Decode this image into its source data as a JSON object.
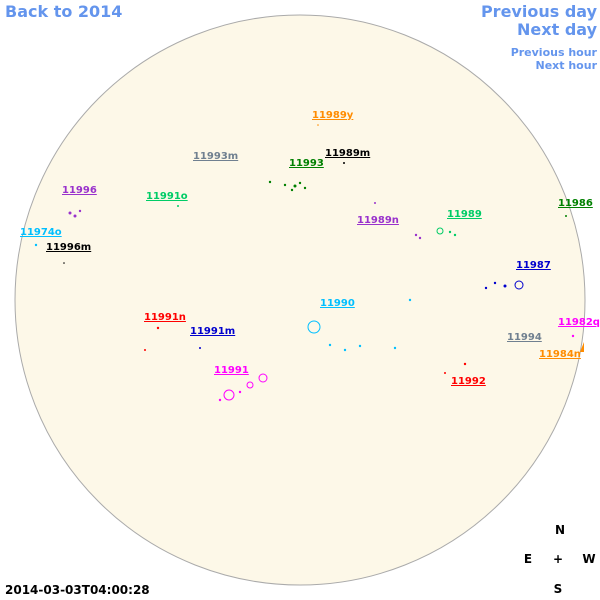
{
  "nav": {
    "back_year": "Back to 2014",
    "previous_day": "Previous day",
    "next_day": "Next day",
    "previous_hour": "Previous hour",
    "next_hour": "Next hour"
  },
  "regions": [
    {
      "label": "11989y",
      "color": "#ff8c00"
    },
    {
      "label": "11989m",
      "color": "#000000"
    },
    {
      "label": "11993m",
      "color": "#708090"
    },
    {
      "label": "11993",
      "color": "#008000"
    },
    {
      "label": "11996",
      "color": "#9932cc"
    },
    {
      "label": "11991o",
      "color": "#00cc66"
    },
    {
      "label": "11986",
      "color": "#008000"
    },
    {
      "label": "11989",
      "color": "#00cc66"
    },
    {
      "label": "11989n",
      "color": "#9932cc"
    },
    {
      "label": "11974o",
      "color": "#00bfff"
    },
    {
      "label": "11996m",
      "color": "#000000"
    },
    {
      "label": "11987",
      "color": "#0000cd"
    },
    {
      "label": "11990",
      "color": "#00bfff"
    },
    {
      "label": "11991n",
      "color": "#ff0000"
    },
    {
      "label": "11991m",
      "color": "#0000cd"
    },
    {
      "label": "11982q",
      "color": "#ff00ff"
    },
    {
      "label": "11994",
      "color": "#708090"
    },
    {
      "label": "11984n",
      "color": "#ff8c00"
    },
    {
      "label": "11991",
      "color": "#ff00ff"
    },
    {
      "label": "11992",
      "color": "#ff0000"
    }
  ],
  "compass": {
    "north": "N",
    "east": "E",
    "center": "+",
    "west": "W",
    "south": "S"
  },
  "timestamp": "2014-03-03T04:00:28"
}
